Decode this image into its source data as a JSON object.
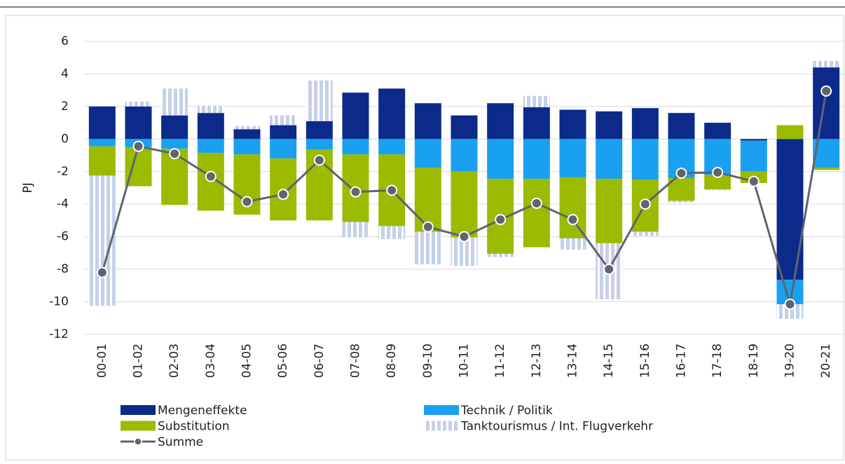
{
  "chart_data": {
    "type": "bar",
    "stacked": true,
    "y_label": "PJ",
    "categories": [
      "00-01",
      "01-02",
      "02-03",
      "03-04",
      "04-05",
      "05-06",
      "06-07",
      "07-08",
      "08-09",
      "09-10",
      "10-11",
      "11-12",
      "12-13",
      "13-14",
      "14-15",
      "15-16",
      "16-17",
      "17-18",
      "18-19",
      "19-20",
      "20-21"
    ],
    "series": [
      {
        "name": "Mengeneffekte",
        "color": "#0b2a8a",
        "values": [
          2.0,
          2.0,
          1.45,
          1.6,
          0.6,
          0.85,
          1.1,
          2.85,
          3.1,
          2.2,
          1.45,
          2.2,
          1.95,
          1.8,
          1.7,
          1.9,
          1.6,
          1.0,
          -0.1,
          -8.65,
          4.4
        ]
      },
      {
        "name": "Technik / Politik",
        "color": "#1aa0f0",
        "values": [
          -0.45,
          -0.5,
          -0.6,
          -0.85,
          -0.95,
          -1.2,
          -0.65,
          -0.95,
          -0.95,
          -1.75,
          -2.0,
          -2.45,
          -2.45,
          -2.35,
          -2.45,
          -2.5,
          -2.4,
          -2.2,
          -1.9,
          -1.5,
          -1.75
        ]
      },
      {
        "name": "Substitution",
        "color": "#9bbb00",
        "values": [
          -1.8,
          -2.4,
          -3.45,
          -3.55,
          -3.7,
          -3.8,
          -4.35,
          -4.15,
          -4.4,
          -3.95,
          -4.05,
          -4.6,
          -4.2,
          -3.75,
          -3.95,
          -3.2,
          -1.4,
          -0.9,
          -0.7,
          0.85,
          -0.15
        ]
      },
      {
        "name": "Tanktourismus / Int. Flugverkehr",
        "color": "#c5d0ea",
        "pattern": "stripes",
        "values": [
          -8.0,
          0.3,
          1.65,
          0.45,
          0.2,
          0.6,
          2.5,
          -0.95,
          -0.8,
          -2.0,
          -1.75,
          -0.2,
          0.7,
          -0.7,
          -3.45,
          -0.25,
          -0.1,
          -0.05,
          0,
          -0.9,
          0.4
        ]
      },
      {
        "name": "Summe",
        "type": "line",
        "color": "#5f6470",
        "values": [
          -8.2,
          -0.45,
          -0.9,
          -2.3,
          -3.85,
          -3.4,
          -1.3,
          -3.25,
          -3.15,
          -5.4,
          -6.0,
          -4.95,
          -3.95,
          -4.95,
          -8.0,
          -4.0,
          -2.1,
          -2.05,
          -2.6,
          -10.15,
          2.95
        ]
      }
    ],
    "ylim": [
      -12,
      6
    ],
    "yticks": [
      -12,
      -10,
      -8,
      -6,
      -4,
      -2,
      0,
      2,
      4,
      6
    ],
    "grid": true,
    "legend": "bottom"
  }
}
